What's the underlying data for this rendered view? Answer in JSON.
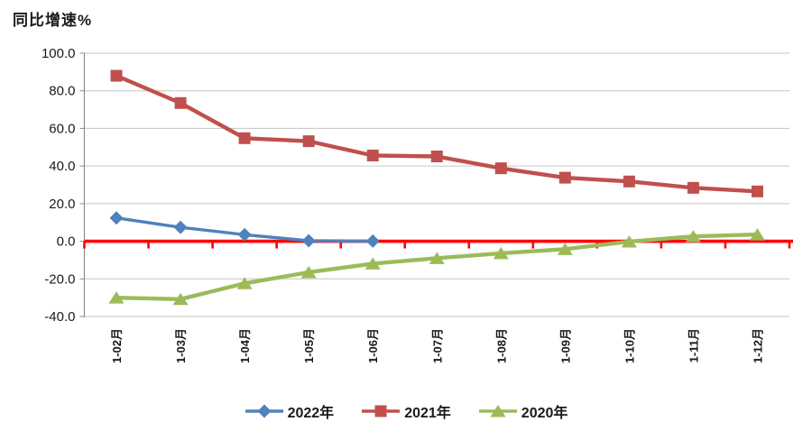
{
  "chart_data": {
    "type": "line",
    "title": "同比增速%",
    "categories": [
      "1-02月",
      "1-03月",
      "1-04月",
      "1-05月",
      "1-06月",
      "1-07月",
      "1-08月",
      "1-09月",
      "1-10月",
      "1-11月",
      "1-12月"
    ],
    "series": [
      {
        "name": "2022年",
        "color": "#4F81BD",
        "marker": "diamond",
        "values": [
          12.4,
          7.4,
          3.5,
          0.3,
          0.1
        ]
      },
      {
        "name": "2021年",
        "color": "#C0504D",
        "marker": "square",
        "values": [
          88.0,
          73.5,
          54.8,
          53.2,
          45.6,
          45.1,
          38.8,
          33.8,
          31.8,
          28.4,
          26.5
        ]
      },
      {
        "name": "2020年",
        "color": "#9BBB59",
        "marker": "triangle",
        "values": [
          -30.0,
          -30.8,
          -22.4,
          -16.5,
          -11.9,
          -9.0,
          -6.4,
          -4.2,
          -0.2,
          2.6,
          3.6
        ]
      }
    ],
    "ylim": [
      -40,
      100
    ],
    "ytick_step": 20,
    "ytick_labels": [
      "100.0",
      "80.0",
      "60.0",
      "40.0",
      "20.0",
      "0.0",
      "-20.0",
      "-40.0"
    ],
    "grid": true,
    "grid_color": "#C6C6C6",
    "axis_color": "#8C8C8C",
    "zero_line_color": "#FF0000",
    "legend_position": "bottom",
    "xlabel": "",
    "ylabel": "同比增速%"
  }
}
